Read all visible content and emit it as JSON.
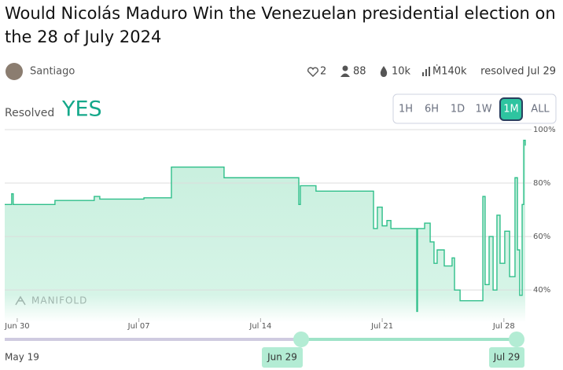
{
  "header": {
    "title": "Would Nicolás Maduro Win the Venezuelan presidential election on the 28 of July 2024",
    "author": "Santiago",
    "stats": {
      "likes": "2",
      "traders": "88",
      "liquidity": "10k",
      "volume": "Ṁ140k",
      "status": "resolved Jul 29"
    }
  },
  "resolution": {
    "label": "Resolved",
    "outcome": "YES"
  },
  "time_buttons": [
    "1H",
    "6H",
    "1D",
    "1W",
    "1M",
    "ALL"
  ],
  "watermark": "MANIFOLD",
  "chart_data": {
    "type": "line",
    "color": "#2fbf8a",
    "x": [
      -0.72,
      -0.32,
      -0.23,
      2.17,
      4.43,
      4.75,
      7.29,
      8.87,
      11.9,
      16.2,
      16.29,
      17.19,
      20.5,
      20.72,
      21.0,
      21.27,
      21.5,
      22.99,
      23.03,
      23.44,
      23.76,
      23.98,
      24.16,
      24.57,
      25.02,
      25.16,
      25.48,
      26.61,
      26.79,
      26.92,
      27.15,
      27.38,
      27.6,
      27.78,
      28.05,
      28.33,
      28.64,
      28.78,
      28.91,
      29.05,
      29.14,
      29.23
    ],
    "values": [
      72,
      76,
      72,
      73.5,
      75,
      74,
      74.5,
      86,
      82,
      72,
      79,
      77,
      63,
      71,
      64,
      66,
      63,
      32,
      63,
      65,
      58,
      50,
      55,
      49,
      52,
      40,
      36,
      36,
      75,
      42,
      60,
      40,
      68,
      50,
      62,
      45,
      82,
      55,
      38,
      72,
      96,
      94
    ],
    "xlim": [
      -0.72,
      29.23
    ],
    "ylim": [
      28,
      100
    ],
    "xticks": [
      {
        "value": 0,
        "label": "Jun 30"
      },
      {
        "value": 7,
        "label": "Jul 07"
      },
      {
        "value": 14,
        "label": "Jul 14"
      },
      {
        "value": 21,
        "label": "Jul 21"
      },
      {
        "value": 28,
        "label": "Jul 28"
      }
    ],
    "yticks": [
      {
        "value": 100,
        "label": "100%"
      },
      {
        "value": 80,
        "label": "80%"
      },
      {
        "value": 60,
        "label": "60%"
      },
      {
        "value": 40,
        "label": "40%"
      }
    ],
    "grid": true
  },
  "slider": {
    "start": "May 19",
    "handles": [
      "Jun 29",
      "Jul 29"
    ]
  }
}
